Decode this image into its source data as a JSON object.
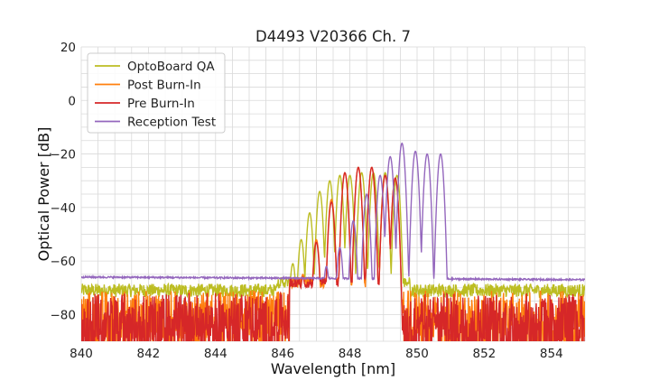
{
  "chart_data": {
    "type": "line",
    "title": "D4493 V20366 Ch. 7",
    "xlabel": "Wavelength [nm]",
    "ylabel": "Optical Power [dB]",
    "xlim": [
      840,
      855
    ],
    "ylim": [
      -90,
      20
    ],
    "xticks": [
      840,
      842,
      844,
      846,
      848,
      850,
      852,
      854
    ],
    "yticks": [
      20,
      0,
      -20,
      -40,
      -60,
      -80
    ],
    "xtick_labels": [
      "840",
      "842",
      "844",
      "846",
      "848",
      "850",
      "852",
      "854"
    ],
    "ytick_labels": [
      "20",
      "0",
      "−20",
      "−40",
      "−60",
      "−80"
    ],
    "grid": true,
    "legend_position": "top-left",
    "series": [
      {
        "name": "OptoBoard QA",
        "color": "#bcbd22",
        "noise_floor": -71,
        "noise_amplitude": 2.5,
        "range": [
          845.8,
          849.8
        ],
        "peaks": [
          {
            "x": 846.3,
            "y": -61
          },
          {
            "x": 846.55,
            "y": -52
          },
          {
            "x": 846.8,
            "y": -42
          },
          {
            "x": 847.1,
            "y": -34
          },
          {
            "x": 847.4,
            "y": -30
          },
          {
            "x": 847.7,
            "y": -28
          },
          {
            "x": 848.0,
            "y": -28
          },
          {
            "x": 848.35,
            "y": -27
          },
          {
            "x": 848.7,
            "y": -27
          },
          {
            "x": 849.05,
            "y": -27
          },
          {
            "x": 849.4,
            "y": -28
          }
        ]
      },
      {
        "name": "Post Burn-In",
        "color": "#ff7f0e",
        "noise_floor": -80,
        "noise_amplitude": 9,
        "range": [
          846.2,
          849.5
        ],
        "peaks": [
          {
            "x": 846.6,
            "y": -65
          },
          {
            "x": 847.0,
            "y": -52
          },
          {
            "x": 847.45,
            "y": -37
          },
          {
            "x": 847.85,
            "y": -27
          },
          {
            "x": 848.25,
            "y": -25
          },
          {
            "x": 848.65,
            "y": -25
          },
          {
            "x": 849.05,
            "y": -28
          },
          {
            "x": 849.35,
            "y": -29
          }
        ]
      },
      {
        "name": "Pre Burn-In",
        "color": "#d62728",
        "noise_floor": -81,
        "noise_amplitude": 9,
        "range": [
          846.2,
          849.5
        ],
        "peaks": [
          {
            "x": 846.6,
            "y": -66
          },
          {
            "x": 847.0,
            "y": -53
          },
          {
            "x": 847.45,
            "y": -38
          },
          {
            "x": 847.85,
            "y": -27
          },
          {
            "x": 848.25,
            "y": -25
          },
          {
            "x": 848.65,
            "y": -25
          },
          {
            "x": 849.05,
            "y": -28
          },
          {
            "x": 849.35,
            "y": -29
          }
        ]
      },
      {
        "name": "Reception Test",
        "color": "#9467bd",
        "baseline_left": -66,
        "baseline_right": -67,
        "range": [
          846.8,
          851.0
        ],
        "peaks": [
          {
            "x": 847.3,
            "y": -62
          },
          {
            "x": 847.7,
            "y": -55
          },
          {
            "x": 848.1,
            "y": -45
          },
          {
            "x": 848.5,
            "y": -35
          },
          {
            "x": 848.9,
            "y": -28
          },
          {
            "x": 849.2,
            "y": -21
          },
          {
            "x": 849.55,
            "y": -16
          },
          {
            "x": 849.95,
            "y": -19
          },
          {
            "x": 850.3,
            "y": -20
          },
          {
            "x": 850.7,
            "y": -20
          }
        ]
      }
    ]
  }
}
